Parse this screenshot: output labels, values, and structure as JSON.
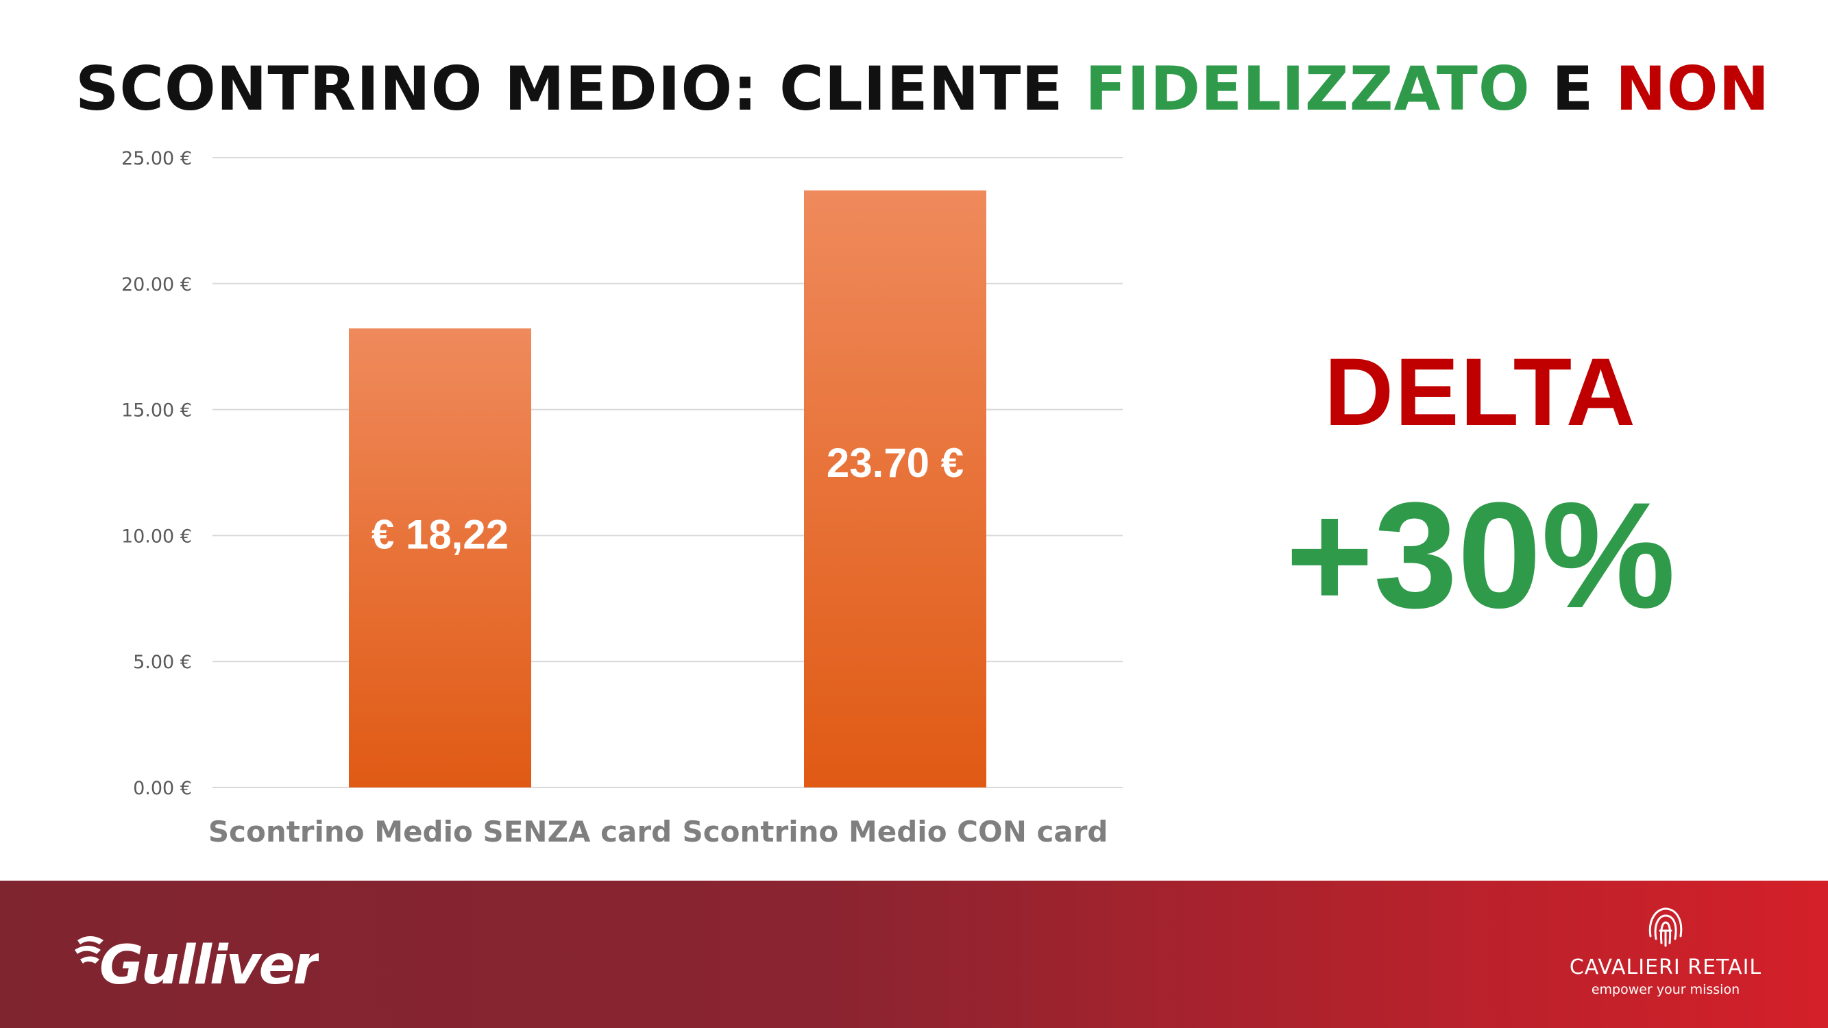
{
  "title": {
    "part1": "SCONTRINO MEDIO: CLIENTE ",
    "highlight_green": "FIDELIZZATO",
    "part2": " E ",
    "highlight_red": "NON"
  },
  "colors": {
    "green": "#2e9a4a",
    "red": "#c00000",
    "bar_top": "#ef8a5c",
    "bar_bottom": "#e05a14",
    "grid": "#d9d9d9"
  },
  "chart_data": {
    "type": "bar",
    "categories": [
      "Scontrino Medio SENZA card",
      "Scontrino Medio CON card"
    ],
    "values": [
      18.22,
      23.7
    ],
    "data_labels": [
      "€ 18,22",
      "23.70 €"
    ],
    "ylim": [
      0,
      25
    ],
    "y_ticks": [
      0,
      5,
      10,
      15,
      20,
      25
    ],
    "y_tick_labels": [
      "0.00 €",
      "5.00 €",
      "10.00 €",
      "15.00 €",
      "20.00 €",
      "25.00 €"
    ],
    "grid": true,
    "legend": "none"
  },
  "delta": {
    "label": "DELTA",
    "value": "+30%"
  },
  "footer": {
    "left_logo_text": "Gulliver",
    "right_logo_name": "CAVALIERI RETAIL",
    "right_logo_tagline": "empower your mission"
  }
}
